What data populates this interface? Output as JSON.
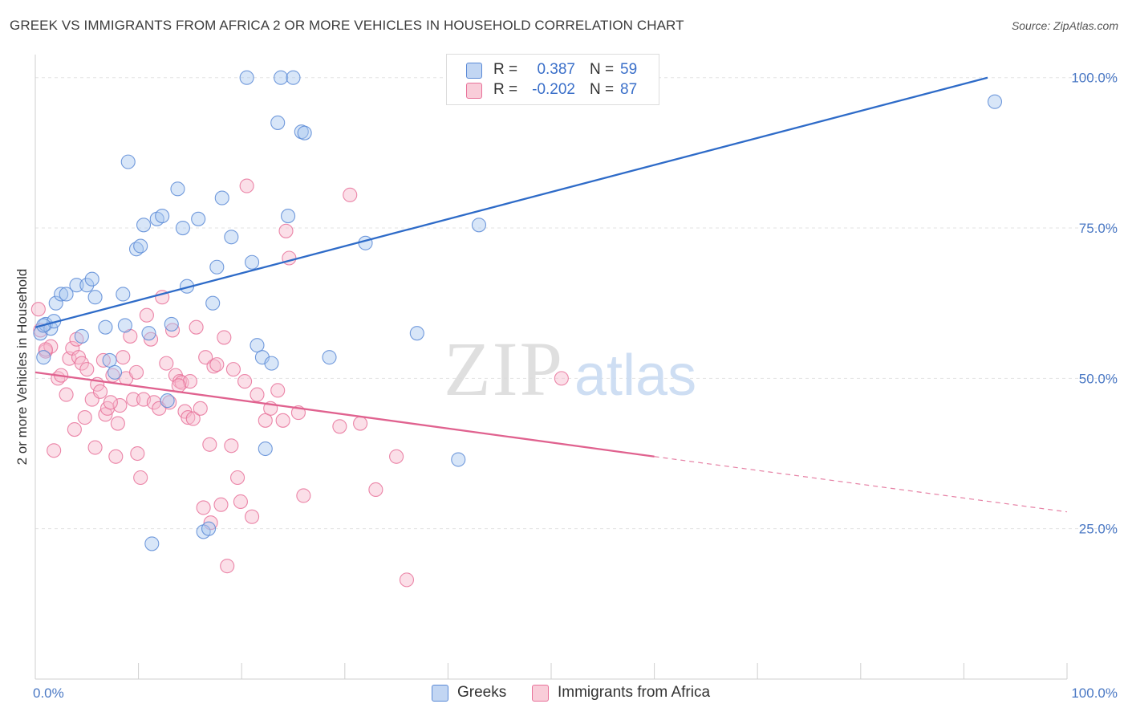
{
  "title": "GREEK VS IMMIGRANTS FROM AFRICA 2 OR MORE VEHICLES IN HOUSEHOLD CORRELATION CHART",
  "source": "Source: ZipAtlas.com",
  "watermark": {
    "zip": "ZIP",
    "atlas": "atlas"
  },
  "colors": {
    "blue": "#5b8ad6",
    "blue_fill": "#a9c7f0",
    "pink": "#e8729a",
    "pink_fill": "#f6b9cd",
    "axis_text": "#4a78c4"
  },
  "legend": {
    "rows": [
      {
        "r_label": "R =",
        "r_value": "0.387",
        "n_label": "N =",
        "n_value": "59",
        "color": "blue"
      },
      {
        "r_label": "R =",
        "r_value": "-0.202",
        "n_label": "N =",
        "n_value": "87",
        "color": "pink"
      }
    ]
  },
  "bottom_legend": [
    {
      "label": "Greeks",
      "color": "blue"
    },
    {
      "label": "Immigrants from Africa",
      "color": "pink"
    }
  ],
  "chart_data": {
    "type": "scatter",
    "xlabel": "",
    "ylabel": "2 or more Vehicles in Household",
    "x_tick_labels": [
      "0.0%",
      "100.0%"
    ],
    "y_tick_labels": [
      "100.0%",
      "75.0%",
      "50.0%",
      "25.0%"
    ],
    "xlim": [
      0,
      100
    ],
    "ylim": [
      0,
      102.5
    ],
    "grid": true,
    "series": [
      {
        "name": "Greeks",
        "color": "blue",
        "trend": {
          "x": [
            0,
            92.3
          ],
          "y": [
            58.5,
            100.0
          ],
          "dashed_to": null
        },
        "points": [
          [
            0.5,
            57.5
          ],
          [
            0.8,
            53.5
          ],
          [
            1.0,
            59.0
          ],
          [
            1.5,
            58.3
          ],
          [
            1.8,
            59.5
          ],
          [
            2.0,
            62.5
          ],
          [
            2.5,
            64.0
          ],
          [
            3.0,
            64.0
          ],
          [
            4.0,
            65.5
          ],
          [
            4.5,
            57.0
          ],
          [
            5.0,
            65.5
          ],
          [
            5.5,
            66.5
          ],
          [
            5.8,
            63.5
          ],
          [
            6.8,
            58.5
          ],
          [
            7.2,
            53.0
          ],
          [
            7.7,
            51.0
          ],
          [
            8.5,
            64.0
          ],
          [
            8.7,
            58.8
          ],
          [
            9.0,
            86.0
          ],
          [
            9.8,
            71.5
          ],
          [
            10.2,
            72.0
          ],
          [
            10.5,
            75.5
          ],
          [
            11.0,
            57.5
          ],
          [
            11.3,
            22.5
          ],
          [
            11.8,
            76.5
          ],
          [
            12.3,
            77.0
          ],
          [
            12.8,
            46.3
          ],
          [
            13.2,
            59.0
          ],
          [
            13.8,
            81.5
          ],
          [
            14.3,
            75.0
          ],
          [
            14.7,
            65.3
          ],
          [
            15.8,
            76.5
          ],
          [
            16.3,
            24.5
          ],
          [
            16.8,
            25.0
          ],
          [
            17.2,
            62.5
          ],
          [
            17.6,
            68.5
          ],
          [
            18.1,
            80.0
          ],
          [
            19.0,
            73.5
          ],
          [
            20.5,
            100.0
          ],
          [
            21.0,
            69.3
          ],
          [
            21.5,
            55.5
          ],
          [
            22.0,
            53.5
          ],
          [
            22.3,
            38.3
          ],
          [
            22.9,
            52.5
          ],
          [
            23.5,
            92.5
          ],
          [
            23.8,
            100.0
          ],
          [
            24.5,
            77.0
          ],
          [
            25.0,
            100.0
          ],
          [
            25.8,
            91.0
          ],
          [
            26.1,
            90.8
          ],
          [
            28.5,
            53.5
          ],
          [
            32.0,
            72.5
          ],
          [
            37.0,
            57.5
          ],
          [
            41.0,
            36.5
          ],
          [
            43.0,
            75.5
          ],
          [
            55.5,
            100.0
          ],
          [
            56.0,
            100.0
          ],
          [
            93.0,
            96.0
          ],
          [
            0.8,
            58.8
          ]
        ]
      },
      {
        "name": "Immigrants from Africa",
        "color": "pink",
        "trend": {
          "x": [
            0,
            60.0
          ],
          "y": [
            51.0,
            37.0
          ],
          "dashed_to": [
            100,
            27.8
          ]
        },
        "points": [
          [
            0.3,
            61.5
          ],
          [
            0.5,
            58.0
          ],
          [
            1.0,
            54.5
          ],
          [
            1.5,
            55.3
          ],
          [
            1.8,
            38.0
          ],
          [
            2.2,
            50.0
          ],
          [
            2.5,
            50.5
          ],
          [
            3.0,
            47.3
          ],
          [
            3.3,
            53.3
          ],
          [
            3.6,
            55.0
          ],
          [
            4.0,
            56.5
          ],
          [
            4.2,
            53.5
          ],
          [
            4.5,
            52.5
          ],
          [
            4.8,
            43.5
          ],
          [
            5.0,
            51.5
          ],
          [
            5.5,
            46.5
          ],
          [
            5.8,
            38.5
          ],
          [
            6.0,
            49.0
          ],
          [
            6.3,
            47.8
          ],
          [
            6.8,
            44.0
          ],
          [
            7.0,
            45.0
          ],
          [
            7.5,
            50.5
          ],
          [
            7.8,
            37.0
          ],
          [
            8.0,
            42.5
          ],
          [
            8.2,
            45.5
          ],
          [
            8.5,
            53.5
          ],
          [
            8.8,
            50.0
          ],
          [
            9.2,
            57.0
          ],
          [
            9.5,
            46.5
          ],
          [
            9.8,
            51.0
          ],
          [
            10.2,
            33.5
          ],
          [
            10.5,
            46.5
          ],
          [
            10.8,
            60.5
          ],
          [
            11.2,
            56.5
          ],
          [
            11.5,
            46.0
          ],
          [
            12.0,
            45.0
          ],
          [
            12.3,
            63.5
          ],
          [
            12.7,
            52.5
          ],
          [
            13.0,
            46.0
          ],
          [
            13.3,
            58.0
          ],
          [
            13.6,
            50.5
          ],
          [
            14.0,
            49.5
          ],
          [
            14.2,
            49.3
          ],
          [
            14.5,
            44.5
          ],
          [
            14.8,
            43.5
          ],
          [
            15.0,
            49.5
          ],
          [
            15.3,
            43.3
          ],
          [
            15.6,
            58.5
          ],
          [
            16.0,
            45.0
          ],
          [
            16.3,
            28.5
          ],
          [
            16.5,
            53.5
          ],
          [
            16.9,
            39.0
          ],
          [
            17.0,
            26.0
          ],
          [
            17.3,
            52.0
          ],
          [
            17.6,
            52.3
          ],
          [
            18.0,
            29.0
          ],
          [
            18.3,
            56.8
          ],
          [
            18.6,
            18.8
          ],
          [
            19.0,
            38.8
          ],
          [
            19.6,
            33.5
          ],
          [
            19.9,
            29.5
          ],
          [
            20.3,
            49.5
          ],
          [
            20.5,
            82.0
          ],
          [
            21.0,
            27.0
          ],
          [
            21.5,
            47.3
          ],
          [
            22.3,
            43.0
          ],
          [
            22.8,
            45.0
          ],
          [
            23.5,
            48.0
          ],
          [
            24.0,
            43.0
          ],
          [
            24.3,
            74.5
          ],
          [
            24.6,
            70.0
          ],
          [
            25.5,
            44.3
          ],
          [
            26.0,
            30.5
          ],
          [
            29.5,
            42.0
          ],
          [
            30.5,
            80.5
          ],
          [
            31.5,
            42.5
          ],
          [
            33.0,
            31.5
          ],
          [
            35.0,
            37.0
          ],
          [
            36.0,
            16.5
          ],
          [
            51.0,
            50.0
          ],
          [
            1.0,
            54.8
          ],
          [
            3.8,
            41.5
          ],
          [
            6.6,
            53.0
          ],
          [
            9.9,
            37.5
          ],
          [
            13.9,
            48.8
          ],
          [
            19.2,
            51.5
          ],
          [
            7.3,
            46.0
          ]
        ]
      }
    ]
  }
}
